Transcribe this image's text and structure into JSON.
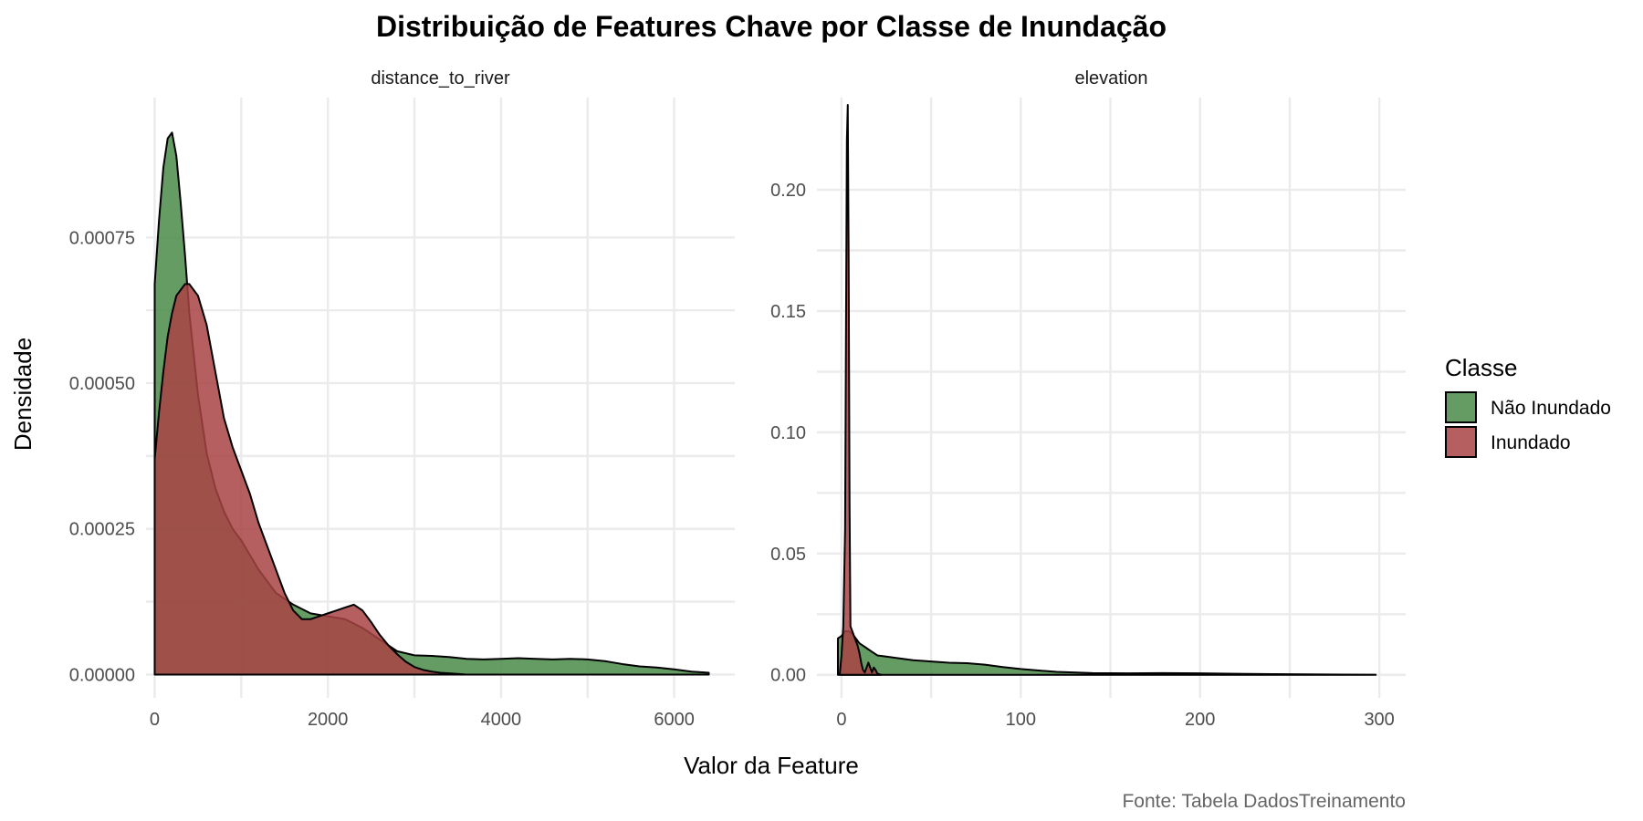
{
  "chart_data": {
    "type": "area",
    "title": "Distribuição de Features Chave por Classe de Inundação",
    "xlabel": "Valor da Feature",
    "ylabel": "Densidade",
    "caption": "Fonte: Tabela DadosTreinamento",
    "legend": {
      "title": "Classe",
      "position": "right",
      "items": [
        {
          "label": "Não Inundado",
          "color": "#4a8b48"
        },
        {
          "label": "Inundado",
          "color": "#a84344"
        }
      ]
    },
    "grid": true,
    "fill_opacity": 0.85,
    "panels": [
      {
        "strip": "distance_to_river",
        "xlim": [
          -100,
          6700
        ],
        "ylim": [
          -4e-05,
          0.00099
        ],
        "xticks": [
          0,
          2000,
          4000,
          6000
        ],
        "xtick_labels": [
          "0",
          "2000",
          "4000",
          "6000"
        ],
        "yticks": [
          0,
          0.00025,
          0.0005,
          0.00075
        ],
        "ytick_labels": [
          "0.00000",
          "0.00025",
          "0.00050",
          "0.00075"
        ],
        "series": [
          {
            "name": "Não Inundado",
            "color": "#4a8b48",
            "x": [
              0,
              50,
              100,
              150,
              200,
              250,
              300,
              350,
              400,
              500,
              600,
              700,
              800,
              900,
              1000,
              1200,
              1400,
              1600,
              1800,
              2000,
              2200,
              2400,
              2600,
              2800,
              3000,
              3200,
              3400,
              3600,
              3800,
              4000,
              4200,
              4400,
              4600,
              4800,
              5000,
              5200,
              5400,
              5600,
              5800,
              6000,
              6200,
              6400
            ],
            "y": [
              0.00067,
              0.00078,
              0.00087,
              0.00092,
              0.00093,
              0.00089,
              0.00081,
              0.00072,
              0.00062,
              0.00048,
              0.00038,
              0.00032,
              0.00028,
              0.00025,
              0.00023,
              0.00018,
              0.00014,
              0.00012,
              0.000105,
              0.0001,
              9.5e-05,
              8e-05,
              6e-05,
              4e-05,
              3.3e-05,
              3.2e-05,
              3e-05,
              2.7e-05,
              2.6e-05,
              2.7e-05,
              2.8e-05,
              2.7e-05,
              2.6e-05,
              2.7e-05,
              2.6e-05,
              2.3e-05,
              1.8e-05,
              1.4e-05,
              1.2e-05,
              9e-06,
              5e-06,
              3e-06
            ]
          },
          {
            "name": "Inundado",
            "color": "#a84344",
            "x": [
              0,
              50,
              100,
              150,
              200,
              250,
              300,
              350,
              400,
              450,
              500,
              600,
              700,
              800,
              900,
              1000,
              1100,
              1200,
              1300,
              1400,
              1500,
              1600,
              1700,
              1800,
              1900,
              2000,
              2100,
              2200,
              2300,
              2400,
              2500,
              2600,
              2700,
              2800,
              2900,
              3000,
              3100,
              3200,
              3300,
              3400,
              3500,
              3600
            ],
            "y": [
              0.00037,
              0.00045,
              0.00052,
              0.00058,
              0.00062,
              0.00065,
              0.00066,
              0.00067,
              0.00067,
              0.00066,
              0.00065,
              0.0006,
              0.00052,
              0.00044,
              0.00039,
              0.00035,
              0.00031,
              0.00026,
              0.00022,
              0.00018,
              0.00014,
              0.00011,
              9.5e-05,
              9.5e-05,
              0.0001,
              0.000105,
              0.00011,
              0.000115,
              0.00012,
              0.00011,
              9e-05,
              6.8e-05,
              5e-05,
              3.5e-05,
              2.2e-05,
              1.3e-05,
              8e-06,
              5e-06,
              3e-06,
              2e-06,
              1e-06,
              0
            ]
          }
        ]
      },
      {
        "strip": "elevation",
        "xlim": [
          -13.7,
          314.7
        ],
        "ylim": [
          -0.0095,
          0.238
        ],
        "xticks": [
          0,
          100,
          200,
          300
        ],
        "xtick_labels": [
          "0",
          "100",
          "200",
          "300"
        ],
        "yticks": [
          0,
          0.05,
          0.1,
          0.15,
          0.2
        ],
        "ytick_labels": [
          "0.00",
          "0.05",
          "0.10",
          "0.15",
          "0.20"
        ],
        "series": [
          {
            "name": "Não Inundado",
            "color": "#4a8b48",
            "x": [
              -2,
              0,
              2,
              4,
              6,
              8,
              10,
              12,
              14,
              16,
              18,
              20,
              25,
              30,
              40,
              50,
              60,
              70,
              80,
              90,
              100,
              110,
              120,
              140,
              160,
              180,
              200,
              220,
              240,
              260,
              280,
              298
            ],
            "y": [
              0.015,
              0.016,
              0.018,
              0.018,
              0.017,
              0.015,
              0.013,
              0.012,
              0.011,
              0.01,
              0.009,
              0.008,
              0.0075,
              0.007,
              0.006,
              0.0055,
              0.005,
              0.0048,
              0.0042,
              0.0032,
              0.0024,
              0.0018,
              0.0012,
              0.0007,
              0.0006,
              0.0007,
              0.0006,
              0.0004,
              0.0003,
              0.0002,
              0.0001,
              5e-05
            ]
          },
          {
            "name": "Inundado",
            "color": "#a84344",
            "x": [
              -1,
              0,
              1,
              2,
              2.5,
              3,
              3.5,
              4,
              4.5,
              5,
              6,
              7,
              8,
              9,
              10,
              11,
              12,
              13,
              14,
              15,
              16,
              17,
              18,
              19,
              20,
              22
            ],
            "y": [
              0.0,
              0.008,
              0.02,
              0.06,
              0.14,
              0.22,
              0.235,
              0.17,
              0.07,
              0.02,
              0.018,
              0.016,
              0.014,
              0.012,
              0.009,
              0.005,
              0.002,
              0.001,
              0.003,
              0.005,
              0.003,
              0.001,
              0.003,
              0.002,
              0.0005,
              0.0
            ]
          }
        ]
      }
    ]
  }
}
